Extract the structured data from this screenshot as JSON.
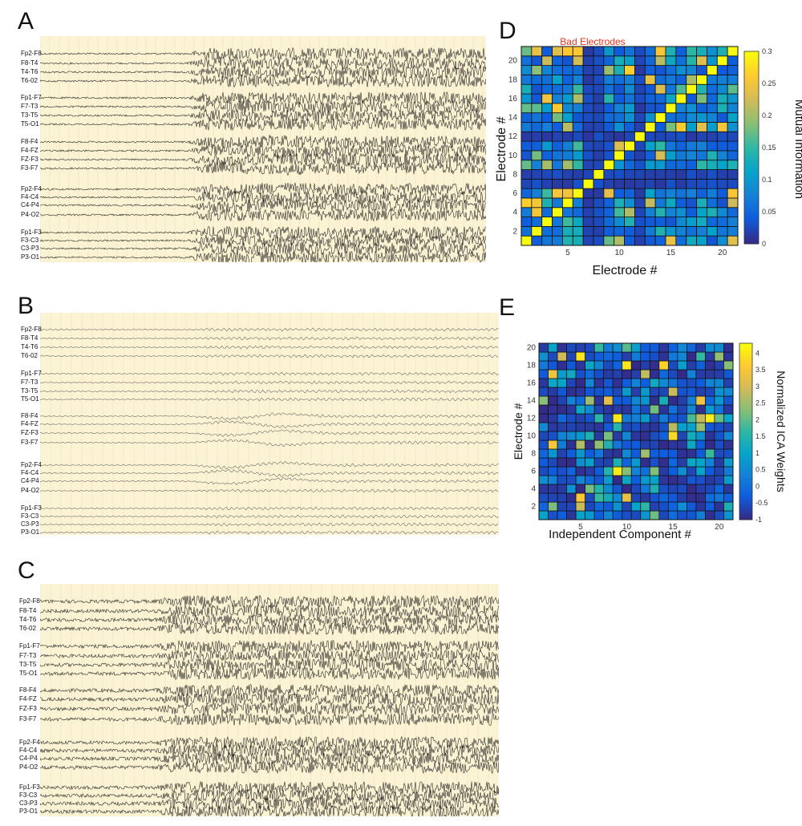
{
  "panels": {
    "a": {
      "letter": "A"
    },
    "b": {
      "letter": "B"
    },
    "c": {
      "letter": "C"
    },
    "d": {
      "letter": "D"
    },
    "e": {
      "letter": "E"
    }
  },
  "channels": [
    "Fp2-F8",
    "F8-T4",
    "T4-T6",
    "T6-02",
    "Fp1-F7",
    "F7-T3",
    "T3-T5",
    "T5-O1",
    "F8-F4",
    "F4-FZ",
    "FZ-F3",
    "F3-F7",
    "Fp2-F4",
    "F4-C4",
    "C4-P4",
    "P4-O2",
    "Fp1-F3",
    "F3-C3",
    "C3-P3",
    "P3-O1"
  ],
  "channels_a": [
    "Fp2-F8",
    "F8-T4",
    "T4-T6",
    "T6-02",
    "Fp1-F7",
    "F7-T3",
    "T3-T5",
    "T5-O1",
    "F8-F4",
    "F4-FZ",
    "FZ-F3",
    "F3-F7",
    "Fp2-F4",
    "F4-C4",
    "C4-P4",
    "P4-O2",
    "Fp1-F3",
    "F3-C3",
    "C3-P3",
    "P3-O1"
  ],
  "chart_data": [
    {
      "type": "line",
      "panel": "A",
      "channel_labels": [
        "Fp2-F8",
        "F8-T4",
        "T4-T6",
        "T6-02",
        "Fp1-F7",
        "F7-T3",
        "T3-T5",
        "T5-O1",
        "F8-F4",
        "F4-FZ",
        "FZ-F3",
        "F3-F7",
        "Fp2-F4",
        "F4-C4",
        "C4-P4",
        "P4-O2",
        "Fp1-F3",
        "F3-C3",
        "C3-P3",
        "P3-O1"
      ],
      "onset_fraction": 0.33,
      "amplitude_before": 0.15,
      "amplitude_after": 1.0
    },
    {
      "type": "line",
      "panel": "B",
      "channel_labels": [
        "Fp2-F8",
        "F8-T4",
        "T4-T6",
        "T6-02",
        "Fp1-F7",
        "F7-T3",
        "T3-T5",
        "T5-O1",
        "F8-F4",
        "F4-FZ",
        "FZ-F3",
        "F3-F7",
        "Fp2-F4",
        "F4-C4",
        "C4-P4",
        "P4-O2",
        "Fp1-F3",
        "F3-C3",
        "C3-P3",
        "P3-O1"
      ],
      "onset_fraction": 0.33,
      "amplitude_before": 0.12,
      "amplitude_after": 0.3
    },
    {
      "type": "line",
      "panel": "C",
      "channel_labels": [
        "Fp2-F8",
        "F8-T4",
        "T4-T6",
        "T6-02",
        "Fp1-F7",
        "F7-T3",
        "T3-T5",
        "T5-O1",
        "F8-F4",
        "F4-FZ",
        "FZ-F3",
        "F3-F7",
        "Fp2-F4",
        "F4-C4",
        "C4-P4",
        "P4-O2",
        "Fp1-F3",
        "F3-C3",
        "C3-P3",
        "P3-O1"
      ],
      "onset_fraction": 0.25,
      "amplitude_before": 0.3,
      "amplitude_after": 1.0
    },
    {
      "type": "heatmap",
      "panel": "D",
      "title": "Bad Electrodes",
      "xlabel": "Electrode #",
      "ylabel": "Electrode #",
      "colorbar_label": "Mutual Information",
      "x_ticks": [
        5,
        10,
        15,
        20
      ],
      "y_ticks": [
        2,
        4,
        6,
        8,
        10,
        12,
        14,
        16,
        18,
        20
      ],
      "colorbar_ticks": [
        "0",
        "0.05",
        "0.1",
        "0.15",
        "0.2",
        "0.25",
        "0.3"
      ],
      "clim": [
        0,
        0.3
      ],
      "size": 21,
      "diagonal": 0.3,
      "bad_electrodes": [
        7,
        8,
        12
      ],
      "colors": [
        "#352a87",
        "#0f5cdd",
        "#1481d6",
        "#06a4ca",
        "#2eb7a4",
        "#87bf77",
        "#d1bb59",
        "#fec832",
        "#f9fb0e"
      ]
    },
    {
      "type": "heatmap",
      "panel": "E",
      "xlabel": "Independent Component #",
      "ylabel": "Electrode #",
      "colorbar_label": "Normalized ICA Weights",
      "x_ticks": [
        5,
        10,
        15,
        20
      ],
      "y_ticks": [
        2,
        4,
        6,
        8,
        10,
        12,
        14,
        16,
        18,
        20
      ],
      "colorbar_ticks": [
        "-1",
        "-0.5",
        "0",
        "0.5",
        "1",
        "1.5",
        "2",
        "2.5",
        "3",
        "3.5",
        "4"
      ],
      "clim": [
        -1,
        4.3
      ],
      "rows": 20,
      "cols": 21
    }
  ]
}
